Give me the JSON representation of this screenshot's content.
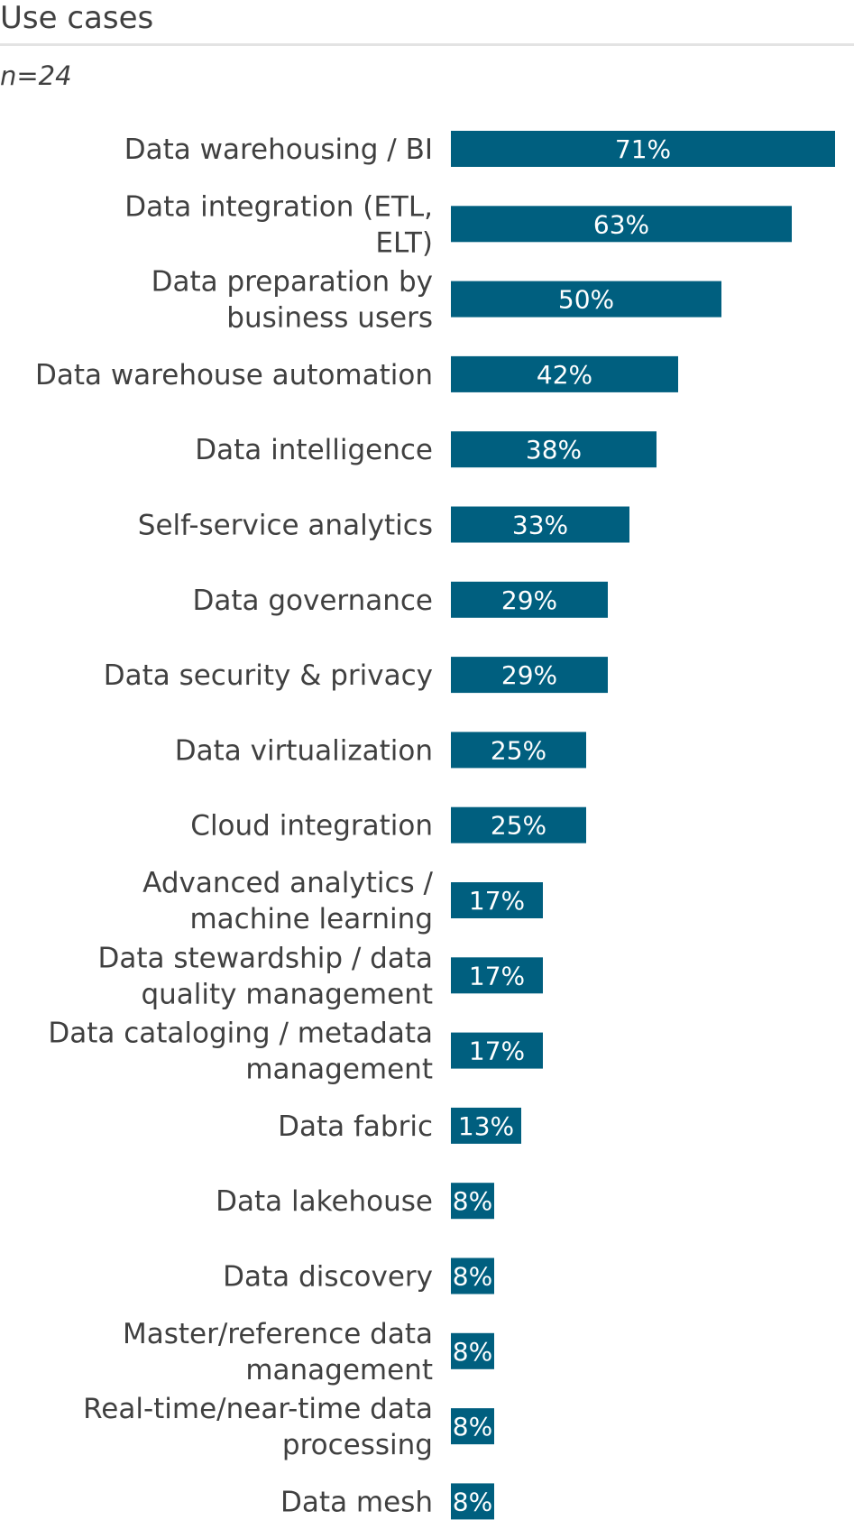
{
  "title": "Use cases",
  "subtitle": "n=24",
  "chart_data": {
    "type": "bar",
    "orientation": "horizontal",
    "bar_color": "#005f7f",
    "label_color": "#404040",
    "value_label_color": "#ffffff",
    "xlim": [
      0,
      71
    ],
    "categories": [
      "Data warehousing / BI",
      "Data integration (ETL, ELT)",
      "Data preparation by business users",
      "Data warehouse automation",
      "Data intelligence",
      "Self-service analytics",
      "Data governance",
      "Data security & privacy",
      "Data virtualization",
      "Cloud integration",
      "Advanced analytics / machine learning",
      "Data stewardship / data quality management",
      "Data cataloging / metadata management",
      "Data fabric",
      "Data lakehouse",
      "Data discovery",
      "Master/reference data management",
      "Real-time/near-time data processing",
      "Data mesh"
    ],
    "category_lines": [
      [
        "Data warehousing / BI"
      ],
      [
        "Data integration (ETL,",
        "ELT)"
      ],
      [
        "Data preparation by",
        "business users"
      ],
      [
        "Data warehouse automation"
      ],
      [
        "Data intelligence"
      ],
      [
        "Self-service analytics"
      ],
      [
        "Data governance"
      ],
      [
        "Data security & privacy"
      ],
      [
        "Data virtualization"
      ],
      [
        "Cloud integration"
      ],
      [
        "Advanced analytics /",
        "machine learning"
      ],
      [
        "Data stewardship / data",
        "quality management"
      ],
      [
        "Data cataloging / metadata",
        "management"
      ],
      [
        "Data fabric"
      ],
      [
        "Data lakehouse"
      ],
      [
        "Data discovery"
      ],
      [
        "Master/reference data",
        "management"
      ],
      [
        "Real-time/near-time data",
        "processing"
      ],
      [
        "Data mesh"
      ]
    ],
    "values": [
      71,
      63,
      50,
      42,
      38,
      33,
      29,
      29,
      25,
      25,
      17,
      17,
      17,
      13,
      8,
      8,
      8,
      8,
      8
    ],
    "value_labels": [
      "71%",
      "63%",
      "50%",
      "42%",
      "38%",
      "33%",
      "29%",
      "29%",
      "25%",
      "25%",
      "17%",
      "17%",
      "17%",
      "13%",
      "8%",
      "8%",
      "8%",
      "8%",
      "8%"
    ]
  }
}
